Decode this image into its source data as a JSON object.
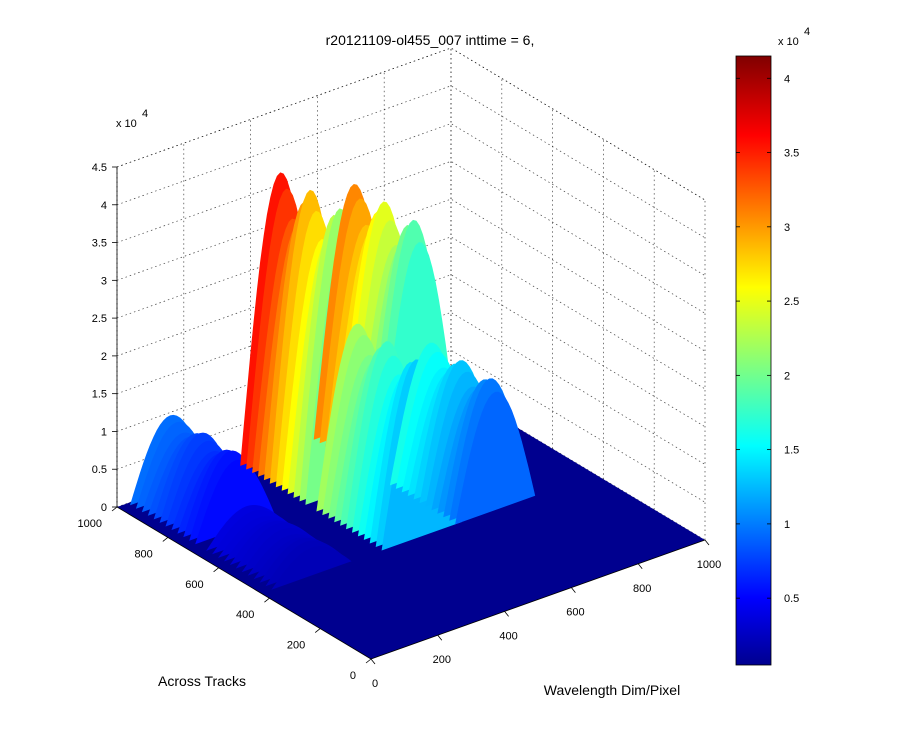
{
  "chart_data": {
    "type": "surface",
    "title": "r20121109-ol455_007 inttime = 6,",
    "xlabel": "Wavelength Dim/Pixel",
    "ylabel": "Across Tracks",
    "zlabel": "",
    "x_ticks": [
      "0",
      "200",
      "400",
      "600",
      "800",
      "1000"
    ],
    "y_ticks": [
      "0",
      "200",
      "400",
      "600",
      "800",
      "1000"
    ],
    "z_ticks": [
      "0",
      "0.5",
      "1",
      "1.5",
      "2",
      "2.5",
      "3",
      "3.5",
      "4",
      "4.5"
    ],
    "z_exponent_label": "x 10",
    "z_exponent_power": "4",
    "xlim": [
      0,
      1000
    ],
    "ylim": [
      0,
      1000
    ],
    "zlim": [
      0,
      45000
    ],
    "grid": true,
    "colormap": "jet",
    "colorbar": {
      "range": [
        500,
        41500
      ],
      "ticks": [
        "0.5",
        "1",
        "1.5",
        "2",
        "2.5",
        "3",
        "3.5",
        "4"
      ],
      "exponent_label": "x 10",
      "exponent_power": "4"
    },
    "surface_peaks": [
      {
        "wavelength_pixel": 150,
        "track_range": [
          720,
          1000
        ],
        "z": 10000
      },
      {
        "wavelength_pixel": 150,
        "track_range": [
          420,
          700
        ],
        "z": 4000
      },
      {
        "wavelength_pixel": 480,
        "track_range": [
          720,
          1000
        ],
        "z": 37000
      },
      {
        "wavelength_pixel": 480,
        "track_range": [
          420,
          700
        ],
        "z": 23000
      },
      {
        "wavelength_pixel": 700,
        "track_range": [
          720,
          1000
        ],
        "z": 32000
      },
      {
        "wavelength_pixel": 700,
        "track_range": [
          420,
          700
        ],
        "z": 17000
      }
    ]
  }
}
